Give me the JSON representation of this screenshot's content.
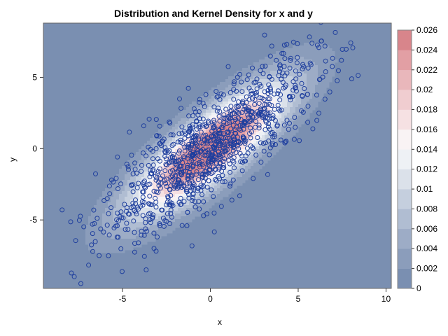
{
  "chart_data": {
    "type": "scatter",
    "title": "Distribution and Kernel Density for x and y",
    "xlabel": "x",
    "ylabel": "y",
    "xlim": [
      -9.5,
      10.3
    ],
    "ylim": [
      -9.8,
      8.8
    ],
    "x_ticks": [
      -5,
      0,
      5,
      10
    ],
    "y_ticks": [
      -5,
      0,
      5
    ],
    "x_tick_labels": [
      "-5",
      "0",
      "5",
      "10"
    ],
    "y_tick_labels": [
      "-5",
      "0",
      "5"
    ],
    "density_model": {
      "mean": [
        0,
        0
      ],
      "sd_x": 3.1,
      "sd_y": 3.2,
      "correlation": 0.83,
      "point_count": 1000
    },
    "colorbar": {
      "min": 0,
      "max": 0.026,
      "tick_values": [
        0,
        0.002,
        0.004,
        0.006,
        0.008,
        0.01,
        0.012,
        0.014,
        0.016,
        0.018,
        0.02,
        0.022,
        0.024,
        0.026
      ],
      "tick_labels": [
        "0",
        "0.002",
        "0.004",
        "0.006",
        "0.008",
        "0.01",
        "0.012",
        "0.014",
        "0.016",
        "0.018",
        "0.02",
        "0.022",
        "0.024",
        "0.026"
      ],
      "colors": [
        "#7a8fb1",
        "#8b9dbb",
        "#9dacc6",
        "#b0bdd2",
        "#c5cfde",
        "#dbe1ea",
        "#eef1f5",
        "#f9f3f4",
        "#f6e1e3",
        "#f0cdd0",
        "#e9b7bb",
        "#e29fa4",
        "#d8858b"
      ]
    },
    "grid": false,
    "legend": "right",
    "colors": {
      "marker": "#1f3f9e",
      "background": "#7a8fb1"
    }
  }
}
